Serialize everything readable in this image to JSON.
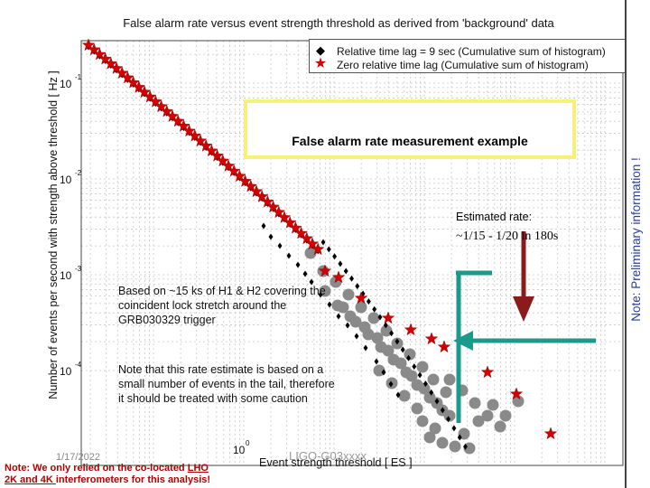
{
  "chart_data": {
    "type": "scatter",
    "title": "False alarm rate versus event strength threshold as derived from 'background' data",
    "xlabel": "Event strength threshold [ ES ]",
    "ylabel": "Number of events per second with strength above threshold [ Hz ]",
    "xscale": "log",
    "yscale": "log",
    "grid": true,
    "legend_position": "top-right",
    "y_tick_labels": [
      "10",
      "10",
      "10",
      "10"
    ],
    "y_tick_exponents": [
      "-1",
      "-2",
      "-3",
      "-4"
    ],
    "x_tick_labels": [
      "10"
    ],
    "x_tick_exponents": [
      "0"
    ],
    "series": [
      {
        "name": "Relative time lag = 9 sec  (Cumulative sum of histogram)",
        "marker": "diamond",
        "color": "#000000"
      },
      {
        "name": "Zero relative time lag  (Cumulative sum of histogram)",
        "marker": "star",
        "color": "#d40000"
      },
      {
        "name": "",
        "marker": "circle",
        "color": "#8a8a8a"
      }
    ]
  },
  "annotations": {
    "callout": "False alarm rate measurement example",
    "estimated_label": "Estimated rate:",
    "estimated_value": "~1/15 - 1/20  in 180s",
    "note_basis": "Based on ~15 ks of H1 & H2 covering the coincident lock stretch around the GRB030329 trigger",
    "note_caution": "Note that this rate estimate is based on a small number of events in the tail, therefore it should be treated with some caution",
    "note_colocated_pre": "Note: We only relied on the co-located ",
    "note_colocated_lho": "LHO",
    "note_colocated_mid": "2K and 4K ",
    "note_colocated_post": "interferometers for this analysis!",
    "sidebar": "Note: Preliminary information !"
  },
  "footer": {
    "date": "1/17/2022",
    "watermark": "LIGO-G03xxxx"
  },
  "colors": {
    "star": "#d40000",
    "arrow_teal": "#1a9a8a",
    "arrow_red": "#8b1a1a",
    "callout_border": "#f5f17a",
    "sidebar_text": "#2a3d99"
  }
}
